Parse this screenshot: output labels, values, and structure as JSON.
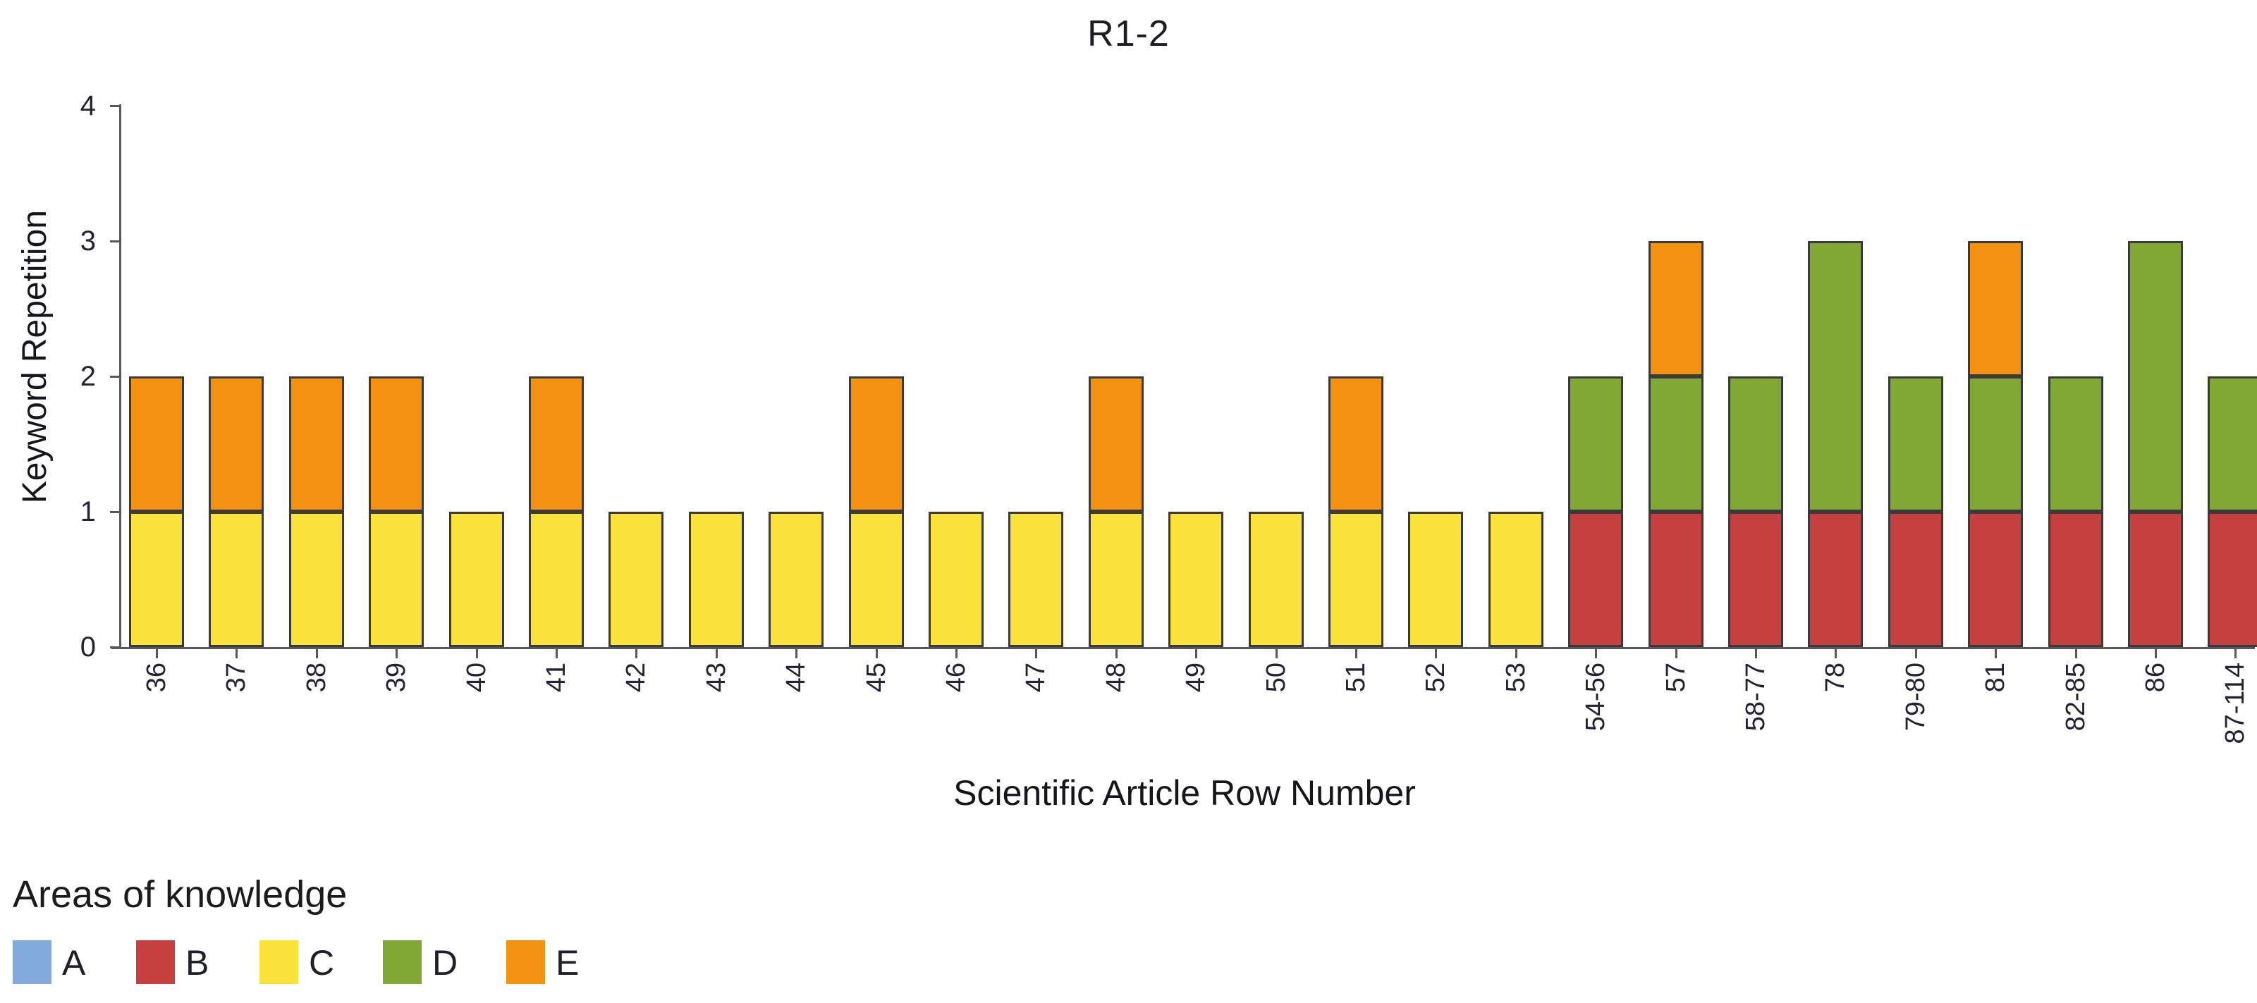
{
  "chart_data": {
    "type": "bar",
    "stacked": true,
    "title": "R1-2",
    "xlabel": "Scientific Article Row Number",
    "ylabel": "Keyword Repetition",
    "ylim": [
      0,
      4
    ],
    "yticks": [
      0,
      1,
      2,
      3,
      4
    ],
    "grid": false,
    "legend": {
      "title": "Areas of knowledge",
      "position": "bottom-left"
    },
    "categories": [
      "36",
      "37",
      "38",
      "39",
      "40",
      "41",
      "42",
      "43",
      "44",
      "45",
      "46",
      "47",
      "48",
      "49",
      "50",
      "51",
      "52",
      "53",
      "54-56",
      "57",
      "58-77",
      "78",
      "79-80",
      "81",
      "82-85",
      "86",
      "87-114"
    ],
    "series": [
      {
        "name": "A",
        "color": "#82AADB",
        "values": [
          0,
          0,
          0,
          0,
          0,
          0,
          0,
          0,
          0,
          0,
          0,
          0,
          0,
          0,
          0,
          0,
          0,
          0,
          0,
          0,
          0,
          0,
          0,
          0,
          0,
          0,
          0
        ]
      },
      {
        "name": "B",
        "color": "#C5403E",
        "values": [
          0,
          0,
          0,
          0,
          0,
          0,
          0,
          0,
          0,
          0,
          0,
          0,
          0,
          0,
          0,
          0,
          0,
          0,
          1,
          1,
          1,
          1,
          1,
          1,
          1,
          1,
          1
        ]
      },
      {
        "name": "C",
        "color": "#FBE23A",
        "values": [
          1,
          1,
          1,
          1,
          1,
          1,
          1,
          1,
          1,
          1,
          1,
          1,
          1,
          1,
          1,
          1,
          1,
          1,
          0,
          0,
          0,
          0,
          0,
          0,
          0,
          0,
          0
        ]
      },
      {
        "name": "D",
        "color": "#81A734",
        "values": [
          0,
          0,
          0,
          0,
          0,
          0,
          0,
          0,
          0,
          0,
          0,
          0,
          0,
          0,
          0,
          0,
          0,
          0,
          1,
          1,
          1,
          2,
          1,
          1,
          1,
          2,
          1
        ]
      },
      {
        "name": "E",
        "color": "#F39111",
        "values": [
          1,
          1,
          1,
          1,
          0,
          1,
          0,
          0,
          0,
          1,
          0,
          0,
          1,
          0,
          0,
          1,
          0,
          0,
          0,
          1,
          0,
          0,
          0,
          1,
          0,
          0,
          0
        ]
      }
    ]
  },
  "colors": {
    "axis": "#58585a",
    "bar_border": "#3a3a3c",
    "title_text": "#1c1c24",
    "tick_text": "#262135"
  }
}
